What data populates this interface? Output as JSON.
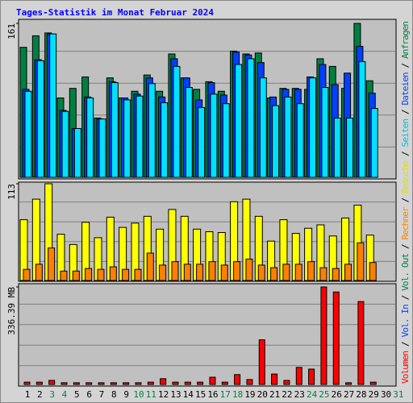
{
  "chart_data": [
    {
      "type": "bar",
      "title": "Tages-Statistik im Monat Februar 2024",
      "categories": [
        "1",
        "2",
        "3",
        "4",
        "5",
        "6",
        "7",
        "8",
        "9",
        "10",
        "11",
        "12",
        "13",
        "14",
        "15",
        "16",
        "17",
        "18",
        "19",
        "20",
        "21",
        "22",
        "23",
        "24",
        "25",
        "26",
        "27",
        "28",
        "29",
        "30",
        "31"
      ],
      "category_colors": [
        "#000000",
        "#000000",
        "#008040",
        "#008040",
        "#000000",
        "#000000",
        "#000000",
        "#000000",
        "#000000",
        "#008040",
        "#008040",
        "#000000",
        "#000000",
        "#000000",
        "#000000",
        "#000000",
        "#008040",
        "#008040",
        "#000000",
        "#000000",
        "#000000",
        "#000000",
        "#000000",
        "#008040",
        "#008040",
        "#000000",
        "#000000",
        "#000000",
        "#000000",
        "#000000",
        "#008040"
      ],
      "ylim": [
        0,
        161
      ],
      "yticks": [
        161
      ],
      "series": [
        {
          "name": "Anfragen",
          "color": "#008040",
          "values": [
            136,
            148,
            151,
            83,
            93,
            105,
            62,
            104,
            83,
            90,
            107,
            90,
            129,
            104,
            92,
            100,
            90,
            132,
            129,
            130,
            83,
            93,
            93,
            92,
            124,
            116,
            93,
            161,
            101,
            null,
            null
          ]
        },
        {
          "name": "Dateien",
          "color": "#0040ff",
          "values": [
            92,
            123,
            150,
            70,
            51,
            84,
            61,
            100,
            83,
            87,
            104,
            84,
            124,
            104,
            81,
            99,
            86,
            131,
            128,
            120,
            84,
            92,
            92,
            105,
            118,
            97,
            109,
            137,
            88,
            null,
            null
          ]
        },
        {
          "name": "Seiten",
          "color": "#00e0ff",
          "values": [
            90,
            122,
            150,
            69,
            51,
            83,
            61,
            99,
            81,
            85,
            98,
            78,
            116,
            94,
            73,
            87,
            77,
            118,
            124,
            104,
            75,
            84,
            77,
            104,
            94,
            62,
            62,
            121,
            72,
            null,
            null
          ]
        }
      ],
      "separator": " / ",
      "legend": [
        {
          "label": "Volumen",
          "color": "#ff0000"
        },
        {
          "label": "Vol. In",
          "color": "#0040ff"
        },
        {
          "label": "Vol. Out",
          "color": "#008040"
        },
        {
          "label": "Rechner",
          "color": "#ff8000"
        },
        {
          "label": "Besuche",
          "color": "#e0e000"
        },
        {
          "label": "Seiten",
          "color": "#00c0e0"
        },
        {
          "label": "Dateien",
          "color": "#0040ff"
        },
        {
          "label": "Anfragen",
          "color": "#008040"
        }
      ]
    },
    {
      "type": "bar",
      "ylim": [
        0,
        113
      ],
      "yticks": [
        113
      ],
      "series": [
        {
          "name": "Besuche",
          "color": "#ffff00",
          "values": [
            71,
            95,
            113,
            54,
            42,
            68,
            50,
            74,
            62,
            67,
            75,
            60,
            83,
            75,
            60,
            57,
            56,
            92,
            95,
            75,
            46,
            71,
            55,
            61,
            65,
            52,
            73,
            88,
            53,
            null,
            null
          ]
        },
        {
          "name": "Rechner",
          "color": "#ff8000",
          "values": [
            13,
            19,
            38,
            11,
            11,
            14,
            13,
            16,
            13,
            13,
            32,
            18,
            22,
            19,
            19,
            22,
            18,
            22,
            25,
            18,
            15,
            19,
            19,
            22,
            15,
            14,
            19,
            44,
            21,
            null,
            null
          ]
        }
      ]
    },
    {
      "type": "bar",
      "ylim": [
        0,
        336.39
      ],
      "yticks": [
        {
          "value": 336.39,
          "label": "336.39 MB"
        }
      ],
      "series": [
        {
          "name": "Volumen",
          "color": "#ff0000",
          "values": [
            8,
            8,
            14,
            6,
            6,
            6,
            6,
            6,
            6,
            6,
            8,
            20,
            8,
            8,
            8,
            25,
            8,
            34,
            17,
            154,
            36,
            14,
            59,
            53,
            336.39,
            319,
            6,
            286,
            8,
            null,
            null
          ]
        }
      ]
    }
  ]
}
